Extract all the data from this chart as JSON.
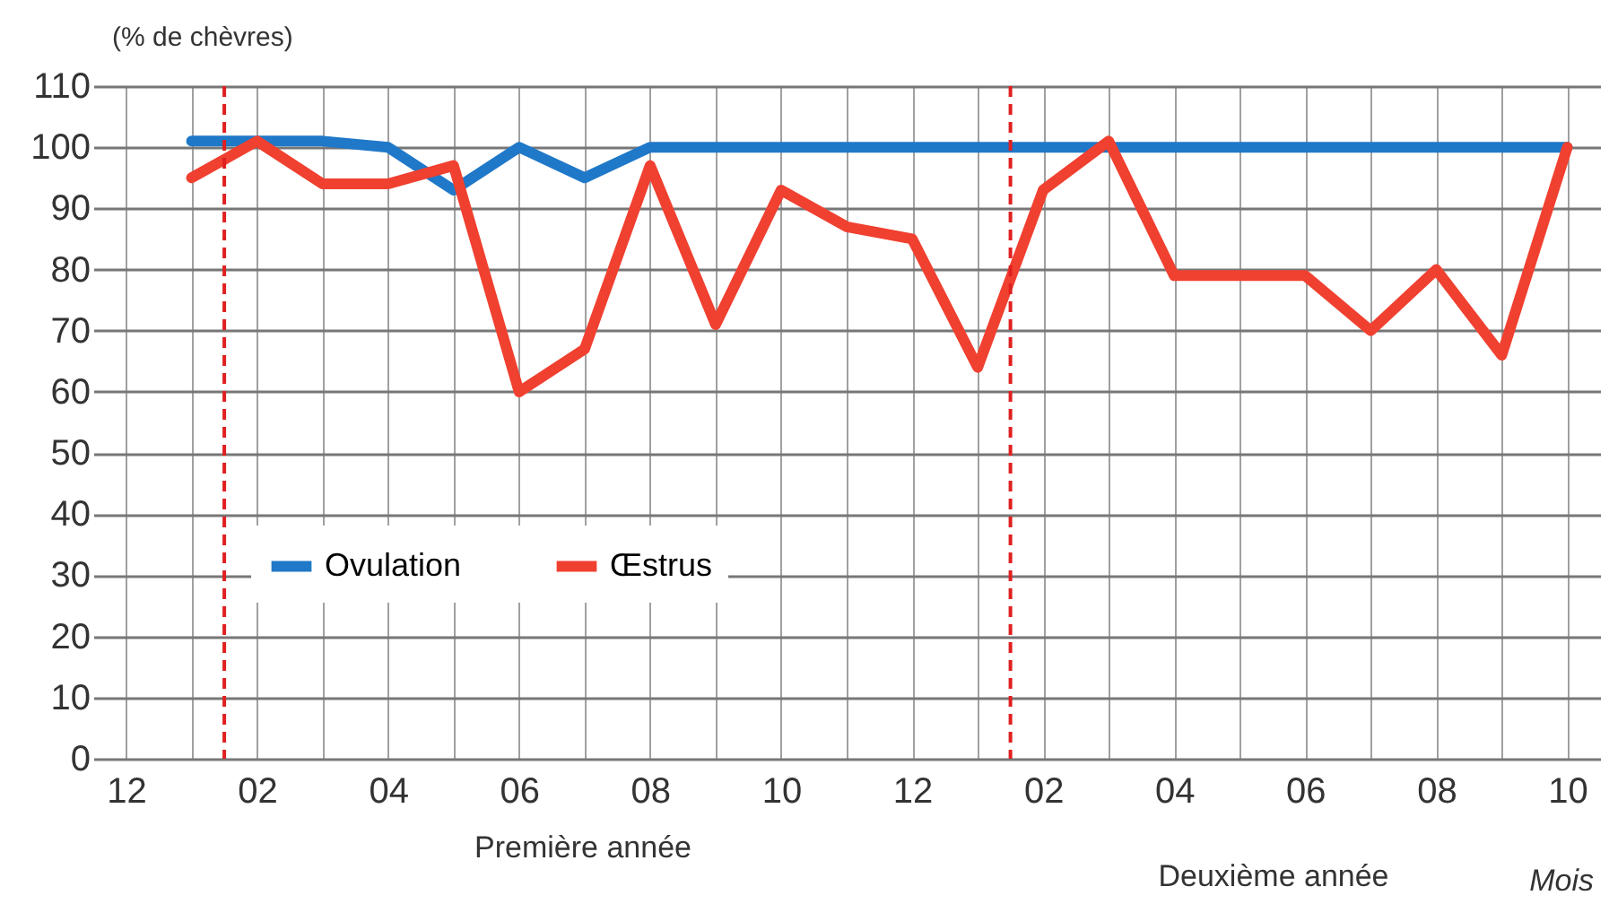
{
  "chart_data": {
    "type": "line",
    "ylabel": "(% de chèvres)",
    "xlabel": "Mois",
    "annotations": [
      "Première année",
      "Deuxième année"
    ],
    "categories": [
      "12",
      null,
      "02",
      null,
      "04",
      null,
      "06",
      null,
      "08",
      null,
      "10",
      null,
      "12",
      null,
      "02",
      null,
      "04",
      null,
      "06",
      null,
      "08",
      null,
      "10"
    ],
    "series": [
      {
        "name": "Ovulation",
        "color": "#1f78c8",
        "values": [
          null,
          101,
          101,
          101,
          100,
          93,
          100,
          95,
          100,
          100,
          100,
          100,
          100,
          100,
          100,
          100,
          100,
          100,
          100,
          100,
          100,
          100,
          100
        ]
      },
      {
        "name": "Œstrus",
        "color": "#f04030",
        "values": [
          null,
          95,
          101,
          94,
          94,
          97,
          60,
          67,
          97,
          71,
          93,
          87,
          85,
          64,
          93,
          101,
          79,
          79,
          79,
          70,
          80,
          66,
          100
        ]
      }
    ],
    "ylim": [
      0,
      110
    ],
    "yticks": [
      0,
      10,
      20,
      30,
      40,
      50,
      60,
      70,
      80,
      90,
      100,
      110
    ],
    "grid": true,
    "legend": "left",
    "line_style": "solid"
  }
}
